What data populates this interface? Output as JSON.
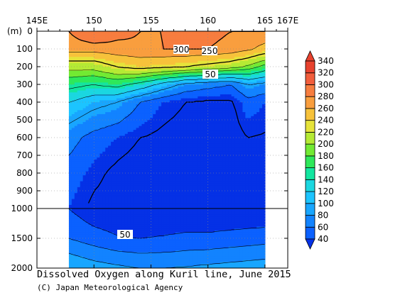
{
  "chart_data": {
    "type": "heatmap",
    "title": "Dissolved Oxygen along Kuril line, June 2015",
    "credit": "(C) Japan Meteorological Agency",
    "x_ticks": [
      "145E",
      "150",
      "155",
      "160",
      "165",
      "167E"
    ],
    "x_tick_values": [
      145,
      150,
      155,
      160,
      165,
      167
    ],
    "xlim": [
      145,
      167
    ],
    "y_unit": "(m)",
    "y_ticks_upper": [
      "0",
      "100",
      "200",
      "300",
      "400",
      "500",
      "600",
      "700",
      "800",
      "900",
      "1000"
    ],
    "y_ticks_lower": [
      "1500",
      "2000"
    ],
    "y_tick_values_upper": [
      0,
      100,
      200,
      300,
      400,
      500,
      600,
      700,
      800,
      900,
      1000
    ],
    "y_tick_values_lower": [
      1500,
      2000
    ],
    "data_extent_x": [
      147.8,
      165
    ],
    "colorbar": {
      "levels": [
        "40",
        "60",
        "80",
        "100",
        "120",
        "140",
        "160",
        "180",
        "200",
        "220",
        "240",
        "260",
        "280",
        "300",
        "320",
        "340"
      ],
      "colors": [
        "#0531e6",
        "#0b61ff",
        "#1283ff",
        "#18a6ff",
        "#1cc4ff",
        "#1bd7e0",
        "#12e6a0",
        "#2ee85a",
        "#72ea33",
        "#b5ea34",
        "#e6e33a",
        "#f7c23b",
        "#f99e3e",
        "#f77d3f",
        "#f25e3c",
        "#e8422e"
      ]
    },
    "contour_labels": [
      "300",
      "250",
      "50",
      "50"
    ],
    "profile_depths": [
      0,
      100,
      200,
      300,
      400,
      600,
      800,
      1000,
      1500,
      2000
    ],
    "profiles": [
      {
        "lon": 147.8,
        "do": [
          300,
          290,
          230,
          180,
          140,
          90,
          70,
          60,
          80,
          120
        ]
      },
      {
        "lon": 150,
        "do": [
          320,
          290,
          230,
          170,
          120,
          70,
          55,
          45,
          70,
          110
        ]
      },
      {
        "lon": 152,
        "do": [
          305,
          295,
          250,
          180,
          110,
          60,
          45,
          42,
          62,
          105
        ]
      },
      {
        "lon": 154,
        "do": [
          300,
          298,
          260,
          160,
          80,
          50,
          40,
          40,
          60,
          100
        ]
      },
      {
        "lon": 156,
        "do": [
          300,
          300,
          255,
          130,
          60,
          45,
          40,
          40,
          62,
          100
        ]
      },
      {
        "lon": 158,
        "do": [
          305,
          300,
          250,
          100,
          50,
          40,
          40,
          40,
          65,
          102
        ]
      },
      {
        "lon": 160,
        "do": [
          305,
          300,
          240,
          90,
          45,
          40,
          40,
          40,
          65,
          105
        ]
      },
      {
        "lon": 162,
        "do": [
          300,
          295,
          230,
          80,
          45,
          40,
          40,
          40,
          68,
          108
        ]
      },
      {
        "lon": 163.5,
        "do": [
          300,
          285,
          215,
          110,
          70,
          50,
          42,
          40,
          70,
          110
        ]
      },
      {
        "lon": 165,
        "do": [
          300,
          270,
          190,
          100,
          60,
          48,
          42,
          40,
          72,
          112
        ]
      }
    ]
  }
}
